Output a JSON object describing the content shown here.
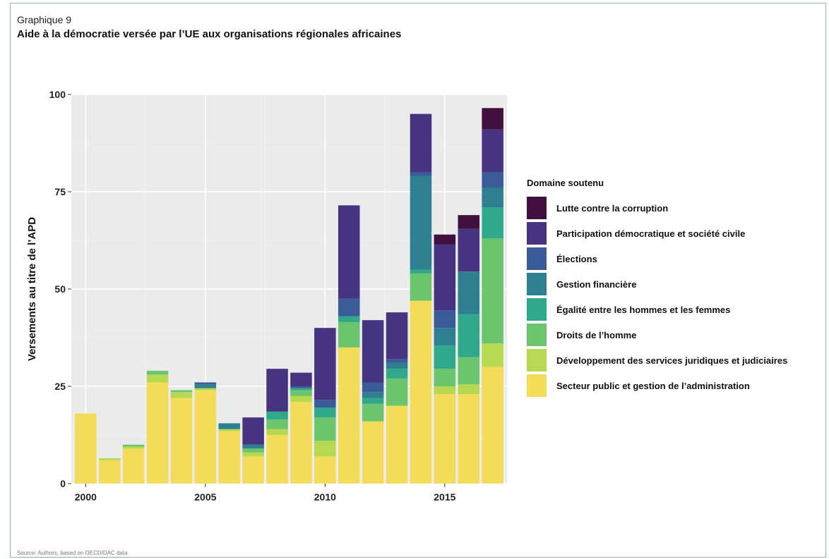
{
  "kicker": "Graphique 9",
  "title": "Aide à la démocratie versée par l’UE aux organisations régionales africaines",
  "source": "Source: Authors, based on OECD/DAC data",
  "chart_data": {
    "type": "bar",
    "stacked": true,
    "title": "Aide à la démocratie versée par l’UE aux organisations régionales africaines",
    "xlabel": "",
    "ylabel": "Versements au titre de l’APD",
    "xlim": [
      1999.4,
      2017.6
    ],
    "ylim": [
      0,
      100
    ],
    "xticks": [
      2000,
      2005,
      2010,
      2015
    ],
    "yticks": [
      0,
      25,
      50,
      75,
      100
    ],
    "xtick_labels": [
      "2000",
      "2005",
      "2010",
      "2015"
    ],
    "ytick_labels": [
      "0",
      "25",
      "50",
      "75",
      "100"
    ],
    "grid": true,
    "legend_position": "right",
    "legend_title": "Domaine soutenu",
    "categories": [
      2000,
      2001,
      2002,
      2003,
      2004,
      2005,
      2006,
      2007,
      2008,
      2009,
      2010,
      2011,
      2012,
      2013,
      2014,
      2015,
      2016,
      2017
    ],
    "series": [
      {
        "name": "Secteur public et gestion de l’administration",
        "color": "#f2dc5a",
        "values": [
          18,
          6,
          9,
          26,
          22,
          24,
          13.5,
          7,
          12.5,
          21,
          7,
          35,
          16,
          20,
          47,
          23,
          23,
          30
        ]
      },
      {
        "name": "Développement des services juridiques et judiciaires",
        "color": "#b7d951",
        "values": [
          0,
          0.5,
          0.5,
          2,
          1.5,
          0.5,
          0.5,
          1,
          1.5,
          1.5,
          4,
          0,
          0,
          0,
          0,
          2,
          2.5,
          6
        ]
      },
      {
        "name": "Droits de l’homme",
        "color": "#6cc56c",
        "values": [
          0,
          0,
          0.5,
          1,
          0.5,
          0,
          0,
          1,
          2.5,
          1.5,
          6,
          6.5,
          4.5,
          7,
          7,
          4.5,
          7,
          27
        ]
      },
      {
        "name": "Égalité entre les hommes et les femmes",
        "color": "#2fa98a",
        "values": [
          0,
          0,
          0,
          0,
          0,
          0,
          0,
          0,
          2,
          0.5,
          2.5,
          1.5,
          1.5,
          2.5,
          1,
          6,
          11,
          8
        ]
      },
      {
        "name": "Gestion financière",
        "color": "#2e7f8f",
        "values": [
          0,
          0,
          0,
          0,
          0,
          1,
          1.5,
          1,
          0,
          0,
          0,
          0,
          1.5,
          1.5,
          24,
          4.5,
          11,
          5
        ]
      },
      {
        "name": "Élections",
        "color": "#3a5a98",
        "values": [
          0,
          0,
          0,
          0,
          0,
          0.5,
          0,
          0,
          0,
          0.5,
          2,
          4.5,
          2.5,
          1,
          1,
          4.5,
          0,
          4
        ]
      },
      {
        "name": "Participation démocratique et société civile",
        "color": "#463480",
        "values": [
          0,
          0,
          0,
          0,
          0,
          0,
          0,
          7,
          11,
          3.5,
          18.5,
          24,
          16,
          12,
          15,
          17,
          11,
          11
        ]
      },
      {
        "name": "Lutte contre la corruption",
        "color": "#42103f",
        "values": [
          0,
          0,
          0,
          0,
          0,
          0,
          0,
          0,
          0,
          0,
          0,
          0,
          0,
          0,
          0,
          2.5,
          3.5,
          5.5
        ]
      }
    ]
  }
}
